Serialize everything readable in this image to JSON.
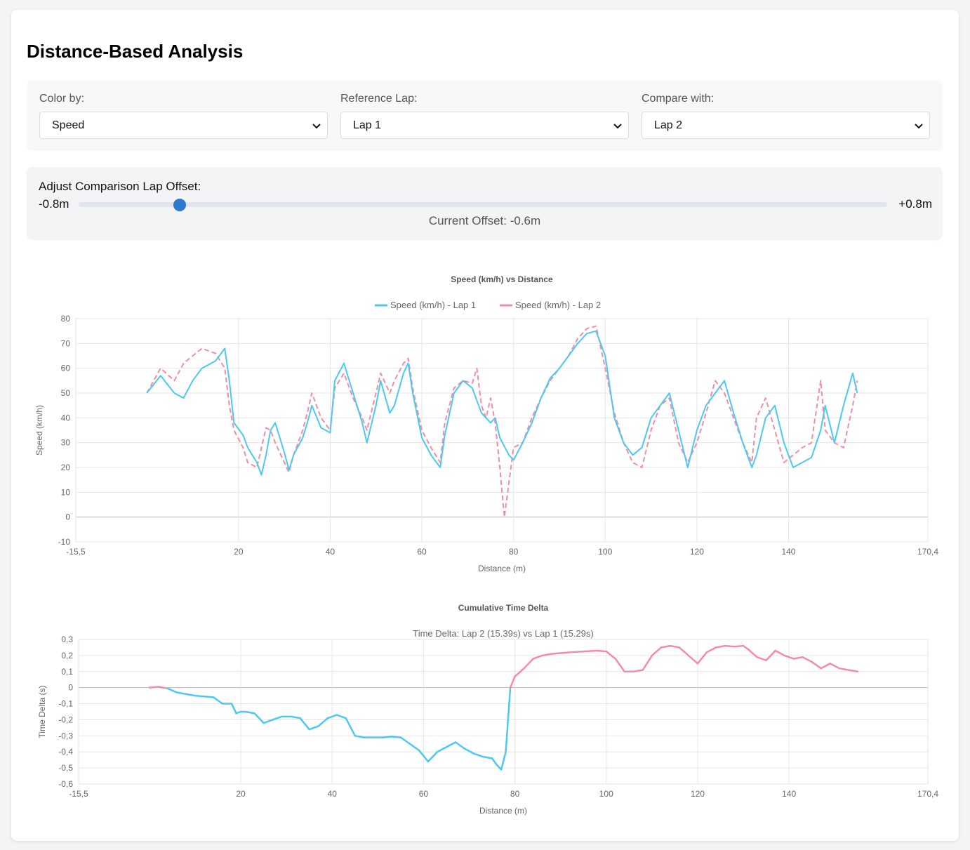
{
  "page": {
    "title": "Distance-Based Analysis"
  },
  "controls": {
    "color_by": {
      "label": "Color by:",
      "value": "Speed"
    },
    "reference_lap": {
      "label": "Reference Lap:",
      "value": "Lap 1"
    },
    "compare_with": {
      "label": "Compare with:",
      "value": "Lap 2"
    }
  },
  "offset": {
    "title": "Adjust Comparison Lap Offset:",
    "min_label": "-0.8m",
    "max_label": "+0.8m",
    "current_text": "Current Offset: -0.6m",
    "min": -0.8,
    "max": 0.8,
    "value": -0.6
  },
  "colors": {
    "lap1": "#4cc9f0",
    "lap2": "#f48ca6",
    "slider": "#2e7ad1",
    "grid": "#e6e6e6"
  },
  "chart_data": [
    {
      "type": "line",
      "title": "Speed (km/h) vs Distance",
      "xlabel": "Distance (m)",
      "ylabel": "Speed (km/h)",
      "xlim": [
        -15.5,
        170.4
      ],
      "ylim": [
        -10,
        80
      ],
      "x_ticks": [
        "-15,5",
        "20",
        "40",
        "60",
        "80",
        "100",
        "120",
        "140",
        "170,4"
      ],
      "y_ticks": [
        "80",
        "70",
        "60",
        "50",
        "40",
        "30",
        "20",
        "10",
        "0",
        "-10"
      ],
      "grid": true,
      "legend": "top-center",
      "series": [
        {
          "name": "Speed (km/h) - Lap 1",
          "style": "solid",
          "x": [
            0,
            3,
            6,
            8,
            10,
            12,
            15,
            17,
            18,
            19,
            21,
            22,
            24,
            25,
            26,
            27,
            28,
            30,
            31,
            32,
            34,
            35,
            36,
            38,
            40,
            41,
            43,
            45,
            47,
            48,
            50,
            51,
            53,
            54,
            56,
            57,
            58,
            60,
            62,
            64,
            65,
            67,
            69,
            71,
            73,
            75,
            76,
            77,
            79,
            80,
            82,
            84,
            86,
            88,
            90,
            92,
            94,
            96,
            98,
            100,
            102,
            104,
            106,
            108,
            110,
            112,
            114,
            116,
            118,
            120,
            122,
            124,
            126,
            128,
            130,
            132,
            133,
            135,
            137,
            139,
            141,
            143,
            145,
            147,
            148,
            150,
            152,
            154,
            155
          ],
          "y": [
            50,
            57,
            50,
            48,
            55,
            60,
            63,
            68,
            55,
            38,
            33,
            28,
            22,
            17,
            25,
            35,
            38,
            26,
            19,
            25,
            32,
            38,
            45,
            36,
            34,
            55,
            62,
            50,
            38,
            30,
            45,
            55,
            42,
            45,
            58,
            62,
            50,
            32,
            25,
            20,
            33,
            50,
            55,
            52,
            42,
            38,
            40,
            32,
            25,
            23,
            30,
            38,
            48,
            56,
            60,
            65,
            70,
            74,
            75,
            65,
            40,
            30,
            25,
            28,
            40,
            45,
            50,
            35,
            20,
            35,
            45,
            50,
            55,
            42,
            30,
            20,
            25,
            40,
            45,
            30,
            20,
            22,
            24,
            35,
            45,
            30,
            45,
            58,
            50
          ]
        },
        {
          "name": "Speed (km/h) - Lap 2",
          "style": "dashed",
          "x": [
            0,
            3,
            6,
            8,
            10,
            12,
            15,
            17,
            18,
            19,
            21,
            22,
            24,
            25,
            26,
            27,
            28,
            30,
            31,
            32,
            34,
            35,
            36,
            38,
            40,
            41,
            43,
            45,
            47,
            48,
            50,
            51,
            53,
            54,
            56,
            57,
            58,
            60,
            62,
            64,
            65,
            67,
            69,
            71,
            72,
            73,
            74,
            75,
            76,
            77,
            78,
            80,
            82,
            84,
            86,
            88,
            90,
            92,
            94,
            96,
            98,
            100,
            102,
            104,
            106,
            108,
            110,
            112,
            114,
            116,
            118,
            120,
            122,
            124,
            126,
            128,
            130,
            132,
            133,
            135,
            137,
            139,
            141,
            143,
            145,
            147,
            148,
            150,
            152,
            154,
            155
          ],
          "y": [
            50,
            60,
            55,
            62,
            65,
            68,
            66,
            60,
            45,
            35,
            28,
            22,
            20,
            28,
            36,
            35,
            30,
            22,
            18,
            25,
            35,
            42,
            50,
            40,
            35,
            52,
            58,
            48,
            40,
            35,
            50,
            58,
            50,
            55,
            62,
            64,
            52,
            35,
            28,
            22,
            38,
            52,
            55,
            54,
            60,
            45,
            40,
            48,
            38,
            20,
            0,
            28,
            30,
            40,
            48,
            55,
            60,
            65,
            72,
            76,
            77,
            60,
            42,
            30,
            22,
            20,
            35,
            45,
            48,
            30,
            22,
            30,
            42,
            55,
            50,
            40,
            30,
            22,
            40,
            48,
            35,
            22,
            25,
            28,
            30,
            55,
            35,
            30,
            28,
            45,
            55
          ]
        }
      ]
    },
    {
      "type": "line",
      "title": "Cumulative Time Delta",
      "subtitle": "Time Delta: Lap 2 (15.39s) vs Lap 1 (15.29s)",
      "xlabel": "Distance (m)",
      "ylabel": "Time Delta (s)",
      "xlim": [
        -15.5,
        170.4
      ],
      "ylim": [
        -0.6,
        0.3
      ],
      "x_ticks": [
        "-15,5",
        "20",
        "40",
        "60",
        "80",
        "100",
        "120",
        "140",
        "170,4"
      ],
      "y_ticks": [
        "0,3",
        "0,2",
        "0,1",
        "0",
        "-0,1",
        "-0,2",
        "-0,3",
        "-0,4",
        "-0,5",
        "-0,6"
      ],
      "grid": true,
      "note": "line is blue below zero (Lap 2 faster), pink above zero",
      "series": [
        {
          "name": "Time Delta",
          "x": [
            0,
            2,
            4,
            6,
            8,
            10,
            12,
            14,
            16,
            17,
            18,
            19,
            20,
            21,
            23,
            25,
            27,
            29,
            31,
            33,
            35,
            37,
            39,
            41,
            43,
            45,
            47,
            49,
            51,
            53,
            55,
            57,
            59,
            61,
            63,
            65,
            67,
            69,
            71,
            73,
            75,
            76,
            77,
            78,
            79,
            80,
            82,
            84,
            86,
            88,
            90,
            92,
            95,
            98,
            100,
            102,
            104,
            106,
            108,
            110,
            112,
            114,
            116,
            118,
            120,
            122,
            124,
            126,
            128,
            130,
            131,
            133,
            135,
            137,
            139,
            141,
            143,
            145,
            147,
            149,
            151,
            153,
            155
          ],
          "y": [
            0,
            0.005,
            -0.005,
            -0.03,
            -0.04,
            -0.05,
            -0.055,
            -0.06,
            -0.1,
            -0.1,
            -0.1,
            -0.16,
            -0.15,
            -0.15,
            -0.16,
            -0.22,
            -0.2,
            -0.18,
            -0.18,
            -0.19,
            -0.26,
            -0.24,
            -0.19,
            -0.17,
            -0.19,
            -0.3,
            -0.31,
            -0.31,
            -0.31,
            -0.305,
            -0.31,
            -0.35,
            -0.39,
            -0.46,
            -0.4,
            -0.37,
            -0.34,
            -0.38,
            -0.41,
            -0.43,
            -0.44,
            -0.48,
            -0.51,
            -0.4,
            0,
            0.07,
            0.12,
            0.18,
            0.2,
            0.21,
            0.215,
            0.22,
            0.225,
            0.23,
            0.225,
            0.18,
            0.1,
            0.1,
            0.11,
            0.2,
            0.25,
            0.26,
            0.25,
            0.2,
            0.15,
            0.22,
            0.25,
            0.26,
            0.255,
            0.26,
            0.24,
            0.19,
            0.17,
            0.23,
            0.2,
            0.18,
            0.19,
            0.16,
            0.12,
            0.15,
            0.12,
            0.11,
            0.1
          ]
        }
      ]
    }
  ]
}
